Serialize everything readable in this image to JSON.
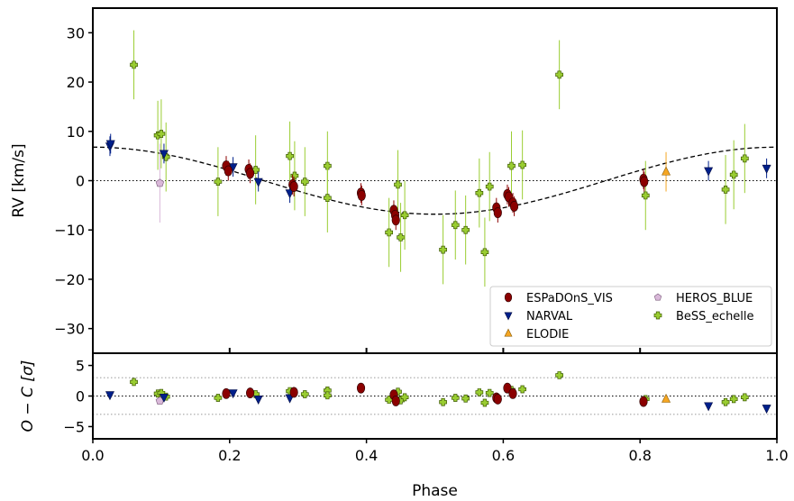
{
  "chart_data": [
    {
      "type": "scatter",
      "title": "",
      "xlabel": "",
      "ylabel": "RV [km/s]",
      "xlim": [
        0.0,
        1.0
      ],
      "ylim": [
        -35,
        35
      ],
      "yticks": [
        30,
        20,
        10,
        0,
        -10,
        -20,
        -30
      ],
      "grid": false,
      "legend_position": "lower-right",
      "legend": [
        {
          "name": "ESPaDOnS_VIS",
          "marker": "circle",
          "color": "#8b0000"
        },
        {
          "name": "NARVAL",
          "marker": "triangle-down",
          "color": "#00208b"
        },
        {
          "name": "ELODIE",
          "marker": "triangle-up",
          "color": "#f5a623"
        },
        {
          "name": "HEROS_BLUE",
          "marker": "pentagon",
          "color": "#d9b8d9"
        },
        {
          "name": "BeSS_echelle",
          "marker": "plus",
          "color": "#9acd32"
        }
      ],
      "model": {
        "type": "sinusoid",
        "amplitude": 6.8,
        "offset": 0.0,
        "phase_of_max": 0.0,
        "style": "dashed"
      },
      "zero_line": {
        "y": 0,
        "style": "dotted"
      },
      "series": [
        {
          "name": "ESPaDOnS_VIS",
          "points": [
            {
              "x": 0.195,
              "y": 3.0,
              "err": 2.0
            },
            {
              "x": 0.198,
              "y": 2.0,
              "err": 2.0
            },
            {
              "x": 0.228,
              "y": 2.3,
              "err": 2.0
            },
            {
              "x": 0.23,
              "y": 1.5,
              "err": 2.0
            },
            {
              "x": 0.292,
              "y": -0.8,
              "err": 2.0
            },
            {
              "x": 0.294,
              "y": -1.2,
              "err": 2.0
            },
            {
              "x": 0.392,
              "y": -2.5,
              "err": 2.0
            },
            {
              "x": 0.393,
              "y": -3.0,
              "err": 2.0
            },
            {
              "x": 0.44,
              "y": -6.0,
              "err": 2.0
            },
            {
              "x": 0.442,
              "y": -7.0,
              "err": 2.0
            },
            {
              "x": 0.443,
              "y": -8.0,
              "err": 2.0
            },
            {
              "x": 0.59,
              "y": -5.5,
              "err": 2.0
            },
            {
              "x": 0.592,
              "y": -6.5,
              "err": 2.0
            },
            {
              "x": 0.606,
              "y": -2.8,
              "err": 2.0
            },
            {
              "x": 0.608,
              "y": -3.3,
              "err": 2.0
            },
            {
              "x": 0.614,
              "y": -4.5,
              "err": 2.0
            },
            {
              "x": 0.616,
              "y": -5.2,
              "err": 2.0
            },
            {
              "x": 0.805,
              "y": 0.3,
              "err": 2.0
            },
            {
              "x": 0.806,
              "y": -0.2,
              "err": 2.0
            }
          ]
        },
        {
          "name": "NARVAL",
          "points": [
            {
              "x": 0.025,
              "y": 7.0,
              "err": 2.0
            },
            {
              "x": 0.026,
              "y": 7.5,
              "err": 2.0
            },
            {
              "x": 0.104,
              "y": 5.5,
              "err": 2.0
            },
            {
              "x": 0.205,
              "y": 2.8,
              "err": 2.0
            },
            {
              "x": 0.242,
              "y": -0.2,
              "err": 2.0
            },
            {
              "x": 0.288,
              "y": -2.5,
              "err": 2.0
            },
            {
              "x": 0.9,
              "y": 2.0,
              "err": 2.0
            },
            {
              "x": 0.985,
              "y": 2.5,
              "err": 2.0
            }
          ]
        },
        {
          "name": "ELODIE",
          "points": [
            {
              "x": 0.838,
              "y": 1.8,
              "err": 4.0
            }
          ]
        },
        {
          "name": "HEROS_BLUE",
          "points": [
            {
              "x": 0.098,
              "y": -0.5,
              "err": 8.0
            }
          ]
        },
        {
          "name": "BeSS_echelle",
          "points": [
            {
              "x": 0.06,
              "y": 23.5,
              "err": 7.0
            },
            {
              "x": 0.095,
              "y": 9.2,
              "err": 7.0
            },
            {
              "x": 0.1,
              "y": 9.5,
              "err": 7.0
            },
            {
              "x": 0.107,
              "y": 4.8,
              "err": 7.0
            },
            {
              "x": 0.183,
              "y": -0.2,
              "err": 7.0
            },
            {
              "x": 0.238,
              "y": 2.2,
              "err": 7.0
            },
            {
              "x": 0.288,
              "y": 5.0,
              "err": 7.0
            },
            {
              "x": 0.295,
              "y": 1.0,
              "err": 7.0
            },
            {
              "x": 0.31,
              "y": -0.2,
              "err": 7.0
            },
            {
              "x": 0.343,
              "y": 3.0,
              "err": 7.0
            },
            {
              "x": 0.343,
              "y": -3.5,
              "err": 7.0
            },
            {
              "x": 0.433,
              "y": -10.5,
              "err": 7.0
            },
            {
              "x": 0.446,
              "y": -0.8,
              "err": 7.0
            },
            {
              "x": 0.45,
              "y": -11.5,
              "err": 7.0
            },
            {
              "x": 0.456,
              "y": -7.0,
              "err": 7.0
            },
            {
              "x": 0.512,
              "y": -14.0,
              "err": 7.0
            },
            {
              "x": 0.53,
              "y": -9.0,
              "err": 7.0
            },
            {
              "x": 0.545,
              "y": -10.0,
              "err": 7.0
            },
            {
              "x": 0.565,
              "y": -2.5,
              "err": 7.0
            },
            {
              "x": 0.573,
              "y": -14.5,
              "err": 7.0
            },
            {
              "x": 0.58,
              "y": -1.2,
              "err": 7.0
            },
            {
              "x": 0.612,
              "y": 3.0,
              "err": 7.0
            },
            {
              "x": 0.628,
              "y": 3.2,
              "err": 7.0
            },
            {
              "x": 0.682,
              "y": 21.5,
              "err": 7.0
            },
            {
              "x": 0.808,
              "y": -3.0,
              "err": 7.0
            },
            {
              "x": 0.925,
              "y": -1.8,
              "err": 7.0
            },
            {
              "x": 0.937,
              "y": 1.2,
              "err": 7.0
            },
            {
              "x": 0.953,
              "y": 4.5,
              "err": 7.0
            }
          ]
        }
      ]
    },
    {
      "type": "scatter",
      "title": "",
      "xlabel": "Phase",
      "ylabel": "O − C [σ]",
      "xlim": [
        0.0,
        1.0
      ],
      "ylim": [
        -7,
        7
      ],
      "xticks": [
        "0.0",
        "0.2",
        "0.4",
        "0.6",
        "0.8",
        "1.0"
      ],
      "yticks": [
        5,
        0,
        -5
      ],
      "grid": false,
      "reference_lines": [
        {
          "y": 3,
          "style": "dotted"
        },
        {
          "y": 0,
          "style": "dotted"
        },
        {
          "y": -3,
          "style": "dotted"
        }
      ],
      "series": [
        {
          "name": "ESPaDOnS_VIS",
          "points": [
            {
              "x": 0.195,
              "y": 0.4
            },
            {
              "x": 0.23,
              "y": 0.5
            },
            {
              "x": 0.294,
              "y": 0.6
            },
            {
              "x": 0.392,
              "y": 1.3
            },
            {
              "x": 0.44,
              "y": 0.2
            },
            {
              "x": 0.443,
              "y": -0.8
            },
            {
              "x": 0.59,
              "y": -0.3
            },
            {
              "x": 0.592,
              "y": -0.5
            },
            {
              "x": 0.606,
              "y": 1.3
            },
            {
              "x": 0.614,
              "y": 0.4
            },
            {
              "x": 0.805,
              "y": -0.9
            }
          ]
        },
        {
          "name": "NARVAL",
          "points": [
            {
              "x": 0.025,
              "y": 0.2
            },
            {
              "x": 0.104,
              "y": -0.2
            },
            {
              "x": 0.205,
              "y": 0.5
            },
            {
              "x": 0.242,
              "y": -0.5
            },
            {
              "x": 0.288,
              "y": -0.3
            },
            {
              "x": 0.9,
              "y": -1.6
            },
            {
              "x": 0.985,
              "y": -2.0
            }
          ]
        },
        {
          "name": "ELODIE",
          "points": [
            {
              "x": 0.838,
              "y": -0.5
            }
          ]
        },
        {
          "name": "HEROS_BLUE",
          "points": [
            {
              "x": 0.098,
              "y": -0.8
            }
          ]
        },
        {
          "name": "BeSS_echelle",
          "points": [
            {
              "x": 0.06,
              "y": 2.3
            },
            {
              "x": 0.095,
              "y": 0.4
            },
            {
              "x": 0.1,
              "y": 0.5
            },
            {
              "x": 0.107,
              "y": -0.1
            },
            {
              "x": 0.183,
              "y": -0.3
            },
            {
              "x": 0.238,
              "y": 0.3
            },
            {
              "x": 0.288,
              "y": 0.8
            },
            {
              "x": 0.31,
              "y": 0.3
            },
            {
              "x": 0.343,
              "y": 0.9
            },
            {
              "x": 0.343,
              "y": 0.1
            },
            {
              "x": 0.433,
              "y": -0.6
            },
            {
              "x": 0.446,
              "y": 0.7
            },
            {
              "x": 0.45,
              "y": -0.7
            },
            {
              "x": 0.456,
              "y": -0.2
            },
            {
              "x": 0.512,
              "y": -1.0
            },
            {
              "x": 0.53,
              "y": -0.3
            },
            {
              "x": 0.545,
              "y": -0.4
            },
            {
              "x": 0.565,
              "y": 0.6
            },
            {
              "x": 0.573,
              "y": -1.1
            },
            {
              "x": 0.58,
              "y": 0.5
            },
            {
              "x": 0.612,
              "y": 1.0
            },
            {
              "x": 0.628,
              "y": 1.1
            },
            {
              "x": 0.682,
              "y": 3.4
            },
            {
              "x": 0.808,
              "y": -0.5
            },
            {
              "x": 0.925,
              "y": -1.0
            },
            {
              "x": 0.937,
              "y": -0.5
            },
            {
              "x": 0.953,
              "y": -0.2
            }
          ]
        }
      ]
    }
  ]
}
